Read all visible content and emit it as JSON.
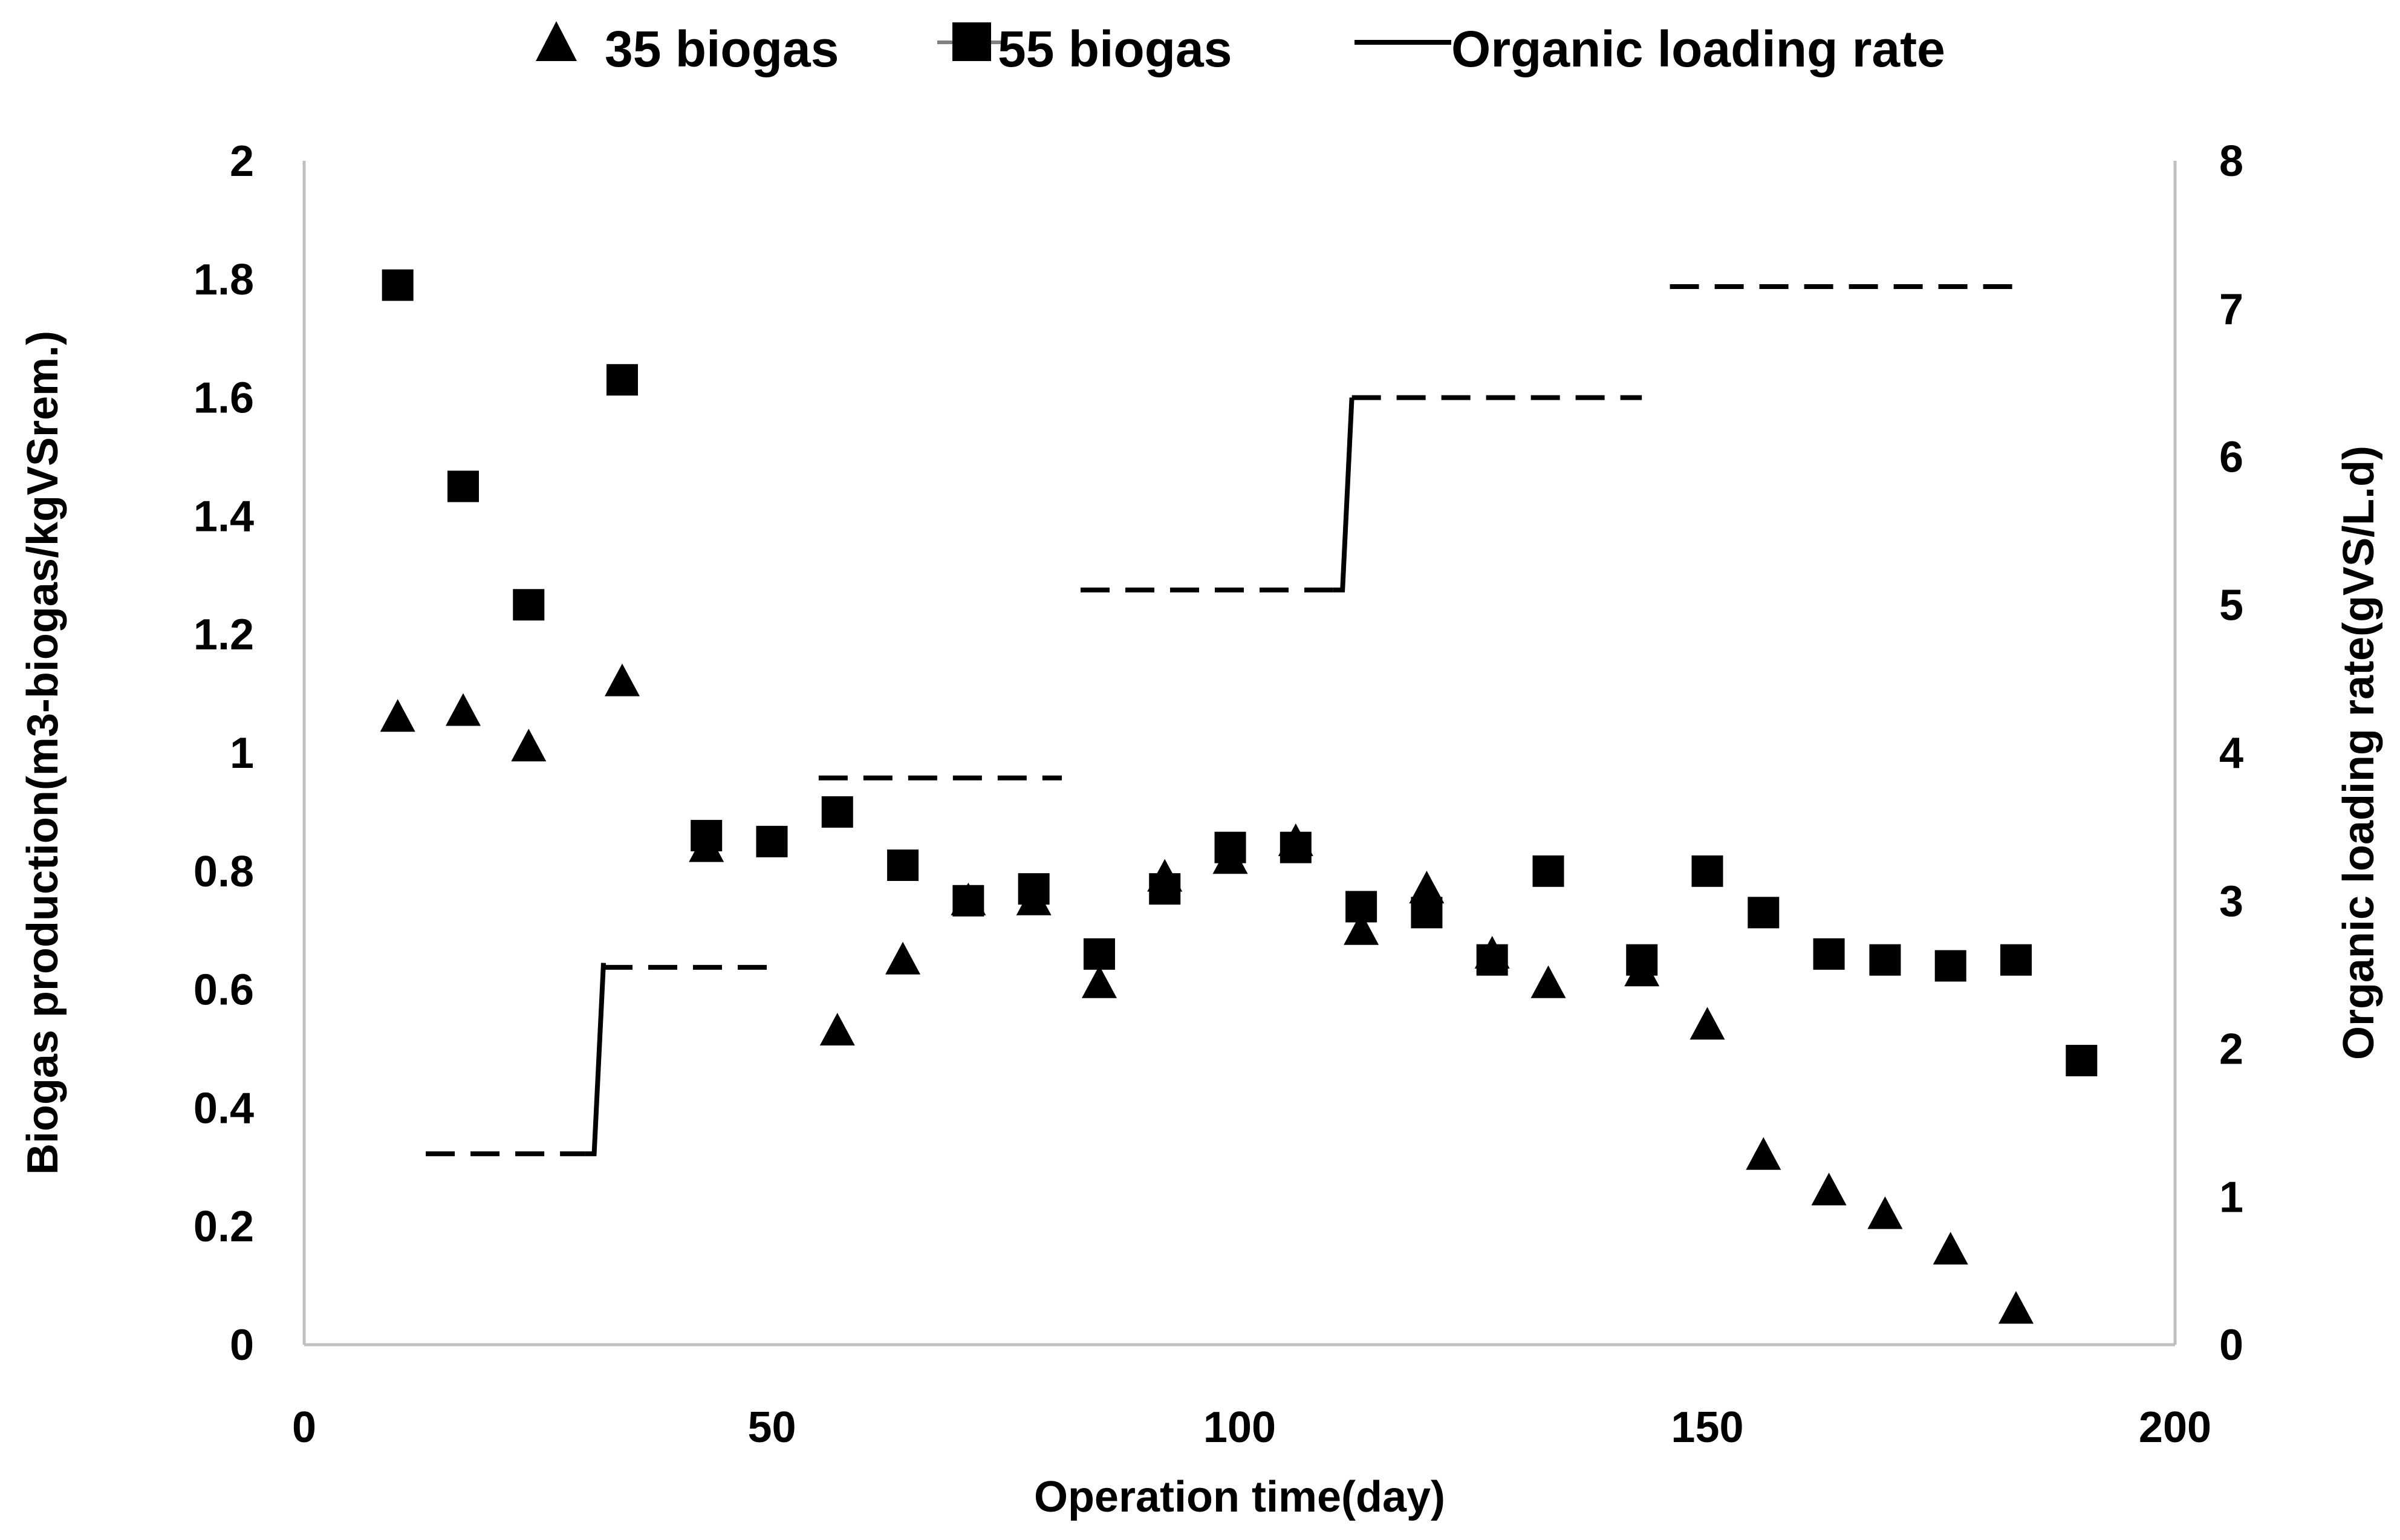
{
  "chart_data": {
    "type": "scatter",
    "title": "",
    "xlabel": "Operation time(day)",
    "ylabel_left": "Biogas production(m3-biogas/kgVSrem.)",
    "ylabel_right": "Organic loading rate(gVS/L.d)",
    "xlim": [
      0,
      200
    ],
    "ylim_left": [
      0,
      2
    ],
    "ylim_right": [
      0,
      8
    ],
    "x_ticks": [
      "0",
      "50",
      "100",
      "150",
      "200"
    ],
    "y_left_ticks": [
      "0",
      "0.2",
      "0.4",
      "0.6",
      "0.8",
      "1",
      "1.2",
      "1.4",
      "1.6",
      "1.8",
      "2"
    ],
    "y_right_ticks": [
      "0",
      "1",
      "2",
      "3",
      "4",
      "5",
      "6",
      "7",
      "8"
    ],
    "grid": false,
    "legend": {
      "placement": "top",
      "entries": [
        "35 biogas",
        "55 biogas",
        "Organic loading rate"
      ]
    },
    "series": [
      {
        "name": "35 biogas",
        "marker": "triangle",
        "axis": "left",
        "x": [
          10,
          17,
          24,
          34,
          43,
          57,
          64,
          71,
          78,
          85,
          92,
          99,
          106,
          113,
          120,
          127,
          133,
          143,
          150,
          156,
          163,
          169,
          176,
          183
        ],
        "y": [
          1.06,
          1.07,
          1.01,
          1.12,
          0.84,
          0.53,
          0.65,
          0.75,
          0.75,
          0.61,
          0.79,
          0.82,
          0.85,
          0.7,
          0.77,
          0.66,
          0.61,
          0.63,
          0.54,
          0.32,
          0.26,
          0.22,
          0.16,
          0.06
        ]
      },
      {
        "name": "55 biogas",
        "marker": "square",
        "axis": "left",
        "x": [
          10,
          17,
          24,
          34,
          43,
          50,
          57,
          64,
          71,
          78,
          85,
          92,
          99,
          106,
          113,
          120,
          127,
          133,
          143,
          150,
          156,
          163,
          169,
          176,
          183,
          190
        ],
        "y": [
          1.79,
          1.45,
          1.25,
          1.63,
          0.86,
          0.85,
          0.9,
          0.81,
          0.75,
          0.77,
          0.66,
          0.77,
          0.84,
          0.84,
          0.74,
          0.73,
          0.65,
          0.8,
          0.65,
          0.8,
          0.73,
          0.66,
          0.65,
          0.64,
          0.65,
          0.48
        ]
      },
      {
        "name": "Organic loading rate",
        "axis": "right",
        "segments": [
          {
            "style": "dashed",
            "x": [
              13,
              30
            ],
            "y": [
              1.29,
              1.29
            ]
          },
          {
            "style": "solid",
            "x": [
              30,
              31,
              32
            ],
            "y": [
              1.29,
              1.29,
              2.58
            ]
          },
          {
            "style": "dashed",
            "x": [
              32,
              50
            ],
            "y": [
              2.55,
              2.55
            ]
          },
          {
            "style": "dashed",
            "x": [
              55,
              81
            ],
            "y": [
              3.83,
              3.83
            ]
          },
          {
            "style": "dashed",
            "x": [
              83,
              110
            ],
            "y": [
              5.1,
              5.1
            ]
          },
          {
            "style": "solid",
            "x": [
              110,
              111,
              112
            ],
            "y": [
              5.1,
              5.1,
              6.4
            ]
          },
          {
            "style": "dashed",
            "x": [
              112,
              143
            ],
            "y": [
              6.4,
              6.4
            ]
          },
          {
            "style": "dashed",
            "x": [
              146,
              184
            ],
            "y": [
              7.15,
              7.15
            ]
          }
        ]
      }
    ]
  }
}
